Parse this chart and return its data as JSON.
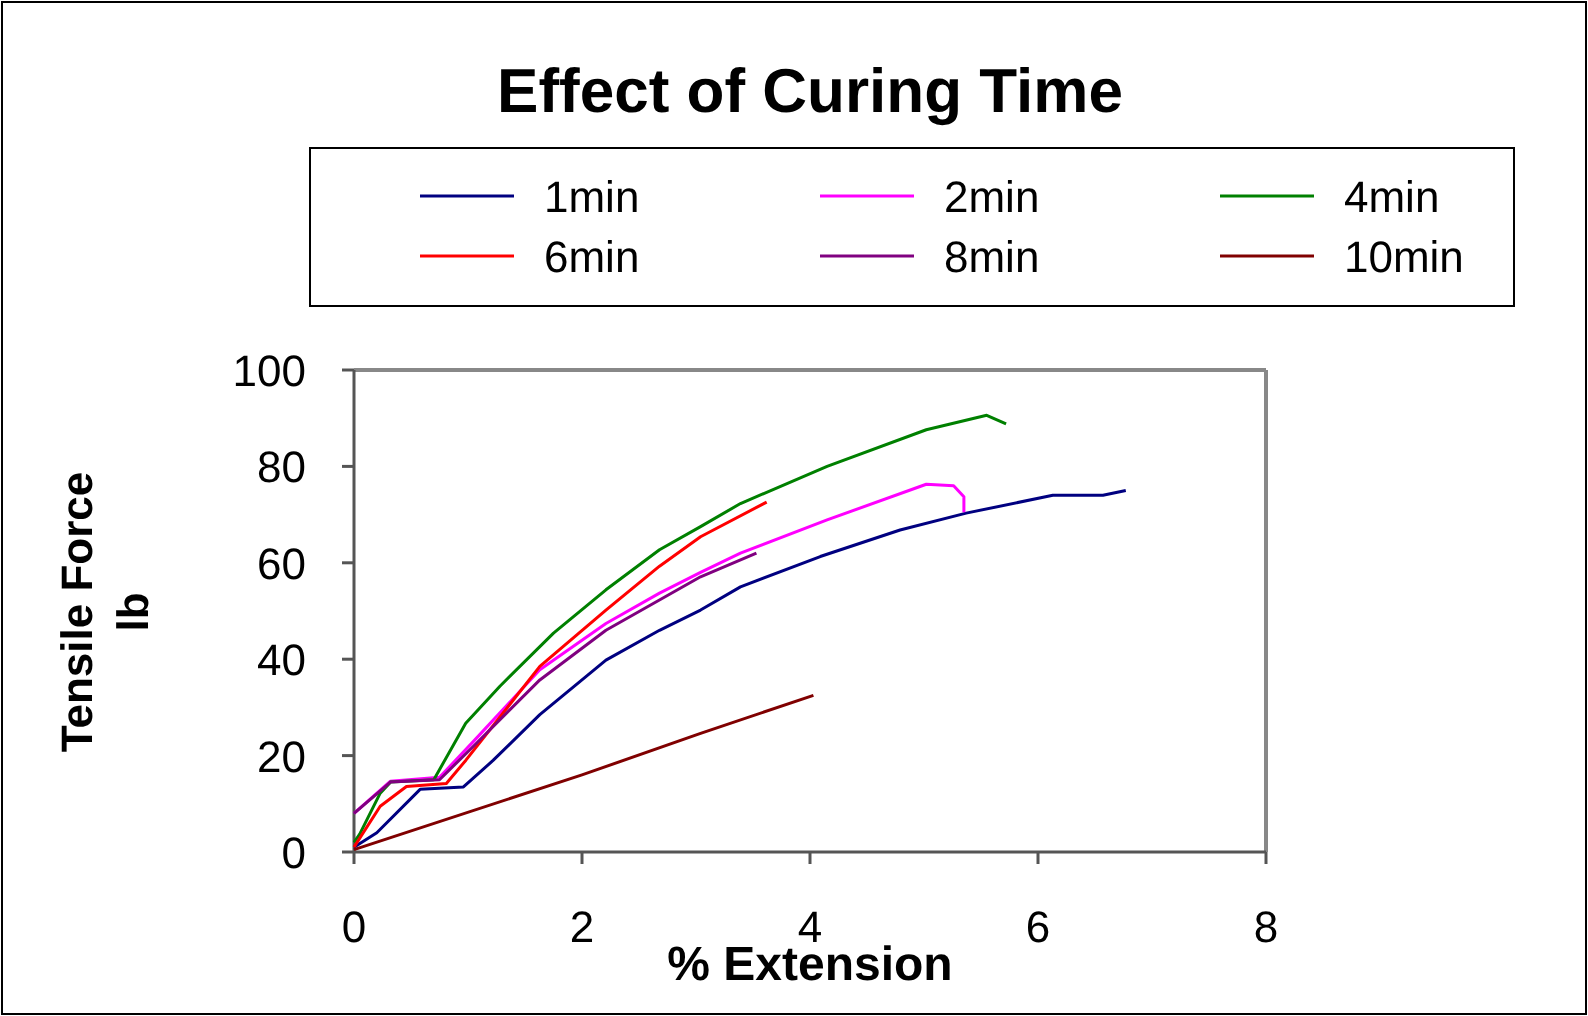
{
  "chart_data": {
    "type": "line",
    "title": "Effect of Curing Time",
    "xlabel": "% Extension",
    "ylabel": "Tensile Force\nlb",
    "xlim": [
      0,
      8
    ],
    "xticks": [
      0,
      2,
      4,
      6,
      8
    ],
    "ylim": [
      0,
      100
    ],
    "yticks": [
      0,
      20,
      40,
      60,
      80,
      100
    ],
    "grid": false,
    "legend": "top",
    "marker": "none",
    "line_style": "solid",
    "series": [
      {
        "name": "1min",
        "color": "#000080",
        "x": [
          0,
          0.2,
          0.58,
          0.96,
          1.22,
          1.63,
          2.21,
          2.68,
          3.04,
          3.39,
          4.09,
          4.79,
          5.37,
          6.13,
          6.57,
          6.77
        ],
        "values": [
          1,
          4,
          13,
          13.5,
          19,
          28.5,
          39.8,
          46,
          50.2,
          55,
          61.3,
          66.8,
          70.3,
          74,
          74,
          75
        ]
      },
      {
        "name": "2min",
        "color": "#ff00ff",
        "x": [
          0,
          0.32,
          0.75,
          1.05,
          1.63,
          2.21,
          2.68,
          3.04,
          3.39,
          4.15,
          5.02,
          5.26,
          5.35,
          5.35
        ],
        "values": [
          8,
          14.7,
          15.5,
          23,
          37.8,
          47.4,
          53.7,
          58,
          62,
          68.9,
          76.3,
          76,
          73.7,
          70.5
        ]
      },
      {
        "name": "4min",
        "color": "#008000",
        "x": [
          0,
          0.05,
          0.23,
          0.32,
          0.7,
          0.98,
          1.28,
          1.75,
          2.21,
          2.68,
          3.04,
          3.39,
          4.15,
          5.02,
          5.55,
          5.72
        ],
        "values": [
          2,
          3.7,
          12.2,
          14.5,
          15,
          26.7,
          34.4,
          45.4,
          54.4,
          62.7,
          67.5,
          72.3,
          80,
          87.6,
          90.6,
          88.8
        ]
      },
      {
        "name": "6min",
        "color": "#ff0000",
        "x": [
          0,
          0.23,
          0.46,
          0.81,
          0.98,
          1.63,
          2.21,
          2.68,
          3.04,
          3.62
        ],
        "values": [
          1,
          9.5,
          13.6,
          14.2,
          19,
          38.5,
          50.2,
          59.3,
          65.4,
          72.6
        ]
      },
      {
        "name": "8min",
        "color": "#800080",
        "x": [
          0,
          0.32,
          0.75,
          1.05,
          1.63,
          2.21,
          3.04,
          3.53
        ],
        "values": [
          8,
          14.5,
          15,
          22,
          35.7,
          46,
          57.1,
          62
        ]
      },
      {
        "name": "10min",
        "color": "#800000",
        "x": [
          0,
          2,
          3.04,
          4.03
        ],
        "values": [
          0.5,
          16,
          24.6,
          32.5
        ]
      }
    ]
  }
}
